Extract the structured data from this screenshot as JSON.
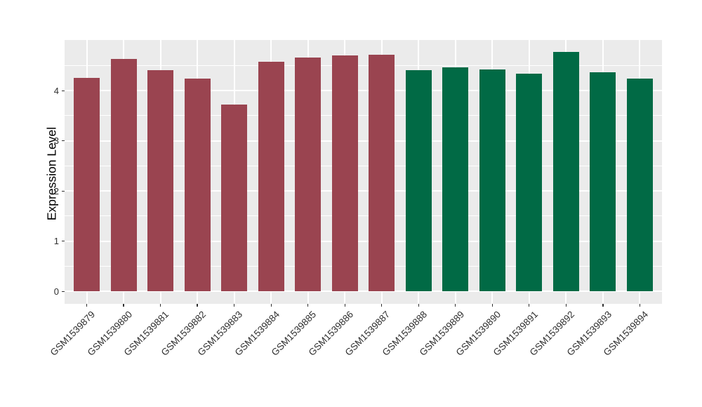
{
  "figure": {
    "title": "",
    "background_color": "#ffffff",
    "panel_color": "#EBEBEB",
    "gridline_color": "#ffffff",
    "tick_color": "#333333"
  },
  "chart_data": {
    "type": "bar",
    "title": "",
    "xlabel": "",
    "ylabel": "Expression Level",
    "categories": [
      "GSM1539879",
      "GSM1539880",
      "GSM1539881",
      "GSM1539882",
      "GSM1539883",
      "GSM1539884",
      "GSM1539885",
      "GSM1539886",
      "GSM1539887",
      "GSM1539888",
      "GSM1539889",
      "GSM1539890",
      "GSM1539891",
      "GSM1539892",
      "GSM1539893",
      "GSM1539894"
    ],
    "values": [
      4.25,
      4.63,
      4.41,
      4.24,
      3.72,
      4.58,
      4.66,
      4.7,
      4.72,
      4.4,
      4.46,
      4.42,
      4.33,
      4.77,
      4.37,
      4.24
    ],
    "bar_colors": [
      "#9A4450",
      "#9A4450",
      "#9A4450",
      "#9A4450",
      "#9A4450",
      "#9A4450",
      "#9A4450",
      "#9A4450",
      "#9A4450",
      "#016A45",
      "#016A45",
      "#016A45",
      "#016A45",
      "#016A45",
      "#016A45",
      "#016A45"
    ],
    "group_colors": {
      "group1": "#9A4450",
      "group2": "#016A45"
    },
    "ylim": [
      0,
      5
    ],
    "yticks": [
      0,
      1,
      2,
      3,
      4
    ],
    "yticks_minor": [
      0.5,
      1.5,
      2.5,
      3.5,
      4.5
    ],
    "grid": "white major and minor horizontal, white major vertical at category centers",
    "legend": "none",
    "bar_orientation": "vertical",
    "x_label_rotation_deg": -45
  }
}
